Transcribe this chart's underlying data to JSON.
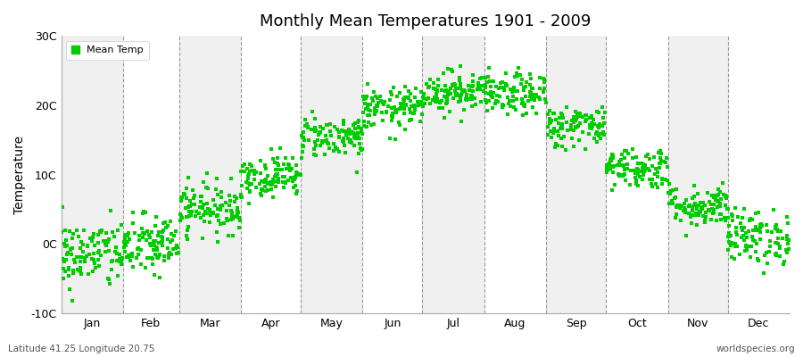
{
  "title": "Monthly Mean Temperatures 1901 - 2009",
  "ylabel": "Temperature",
  "xlabel_labels": [
    "Jan",
    "Feb",
    "Mar",
    "Apr",
    "May",
    "Jun",
    "Jul",
    "Aug",
    "Sep",
    "Oct",
    "Nov",
    "Dec"
  ],
  "ylim": [
    -10,
    30
  ],
  "yticks": [
    -10,
    0,
    10,
    20,
    30
  ],
  "ytick_labels": [
    "-10C",
    "0C",
    "10C",
    "20C",
    "30C"
  ],
  "dot_color": "#00CC00",
  "bg_color_light": "#F0F0F0",
  "bg_color_white": "#FFFFFF",
  "fig_bg_color": "#FFFFFF",
  "legend_label": "Mean Temp",
  "footer_left": "Latitude 41.25 Longitude 20.75",
  "footer_right": "worldspecies.org",
  "monthly_means": [
    -1.5,
    -0.2,
    5.2,
    9.8,
    15.5,
    19.5,
    22.0,
    21.5,
    17.0,
    11.0,
    5.5,
    1.0
  ],
  "monthly_stds": [
    2.5,
    2.2,
    1.8,
    1.5,
    1.5,
    1.5,
    1.5,
    1.5,
    1.5,
    1.5,
    1.5,
    2.0
  ],
  "n_years": 109,
  "dashed_line_color": "#999999",
  "marker_size": 2.5,
  "days_per_month": [
    31,
    28,
    31,
    30,
    31,
    30,
    31,
    31,
    30,
    31,
    30,
    31
  ]
}
